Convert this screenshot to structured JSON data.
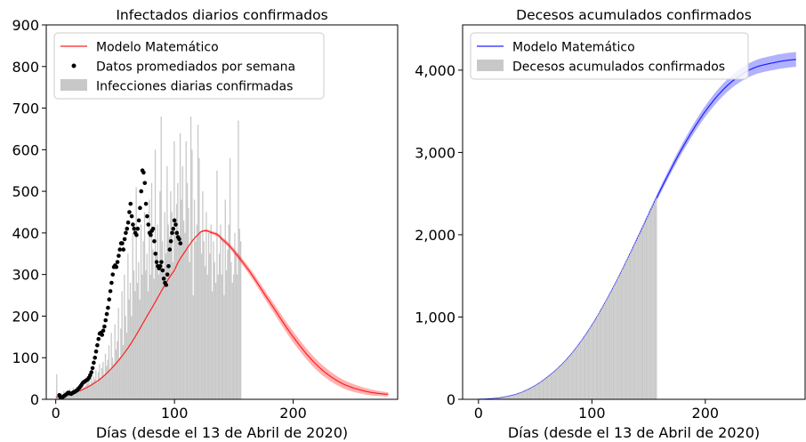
{
  "chart_data": [
    {
      "type": "bar",
      "title": "Infectados diarios confirmados",
      "xlabel": "Días (desde el 13 de Abril de 2020)",
      "ylabel": "",
      "xlim": [
        -8,
        288
      ],
      "ylim": [
        0,
        900
      ],
      "x_ticks": [
        0,
        100,
        200
      ],
      "y_ticks": [
        0,
        100,
        200,
        300,
        400,
        500,
        600,
        700,
        800,
        900
      ],
      "y_tick_format": "plain",
      "legend": {
        "position": "top-left",
        "entries": [
          {
            "label": "Modelo Matemático",
            "kind": "line",
            "color": "#ff2020"
          },
          {
            "label": "Datos promediados por semana",
            "kind": "dot",
            "color": "#000000"
          },
          {
            "label": "Infecciones diarias confirmadas",
            "kind": "bar",
            "color": "#c8c8c8"
          }
        ]
      },
      "series": [
        {
          "kind": "bars",
          "color": "#c8c8c8",
          "x_start": 1,
          "values": [
            60,
            5,
            8,
            12,
            15,
            9,
            20,
            14,
            18,
            22,
            10,
            25,
            16,
            12,
            28,
            20,
            15,
            30,
            22,
            18,
            35,
            25,
            40,
            28,
            32,
            45,
            38,
            50,
            35,
            60,
            42,
            55,
            48,
            70,
            40,
            65,
            85,
            50,
            75,
            90,
            60,
            110,
            80,
            95,
            130,
            70,
            160,
            100,
            85,
            180,
            120,
            140,
            220,
            100,
            170,
            260,
            130,
            300,
            200,
            160,
            350,
            240,
            280,
            200,
            400,
            310,
            260,
            510,
            280,
            330,
            240,
            420,
            300,
            380,
            450,
            310,
            350,
            260,
            480,
            300,
            520,
            360,
            290,
            600,
            350,
            420,
            300,
            500,
            680,
            380,
            310,
            450,
            350,
            560,
            420,
            390,
            500,
            450,
            330,
            620,
            400,
            470,
            520,
            380,
            640,
            480,
            560,
            430,
            400,
            620,
            520,
            460,
            330,
            680,
            600,
            250,
            480,
            380,
            420,
            330,
            580,
            400,
            350,
            500,
            380,
            320,
            450,
            300,
            400,
            350,
            420,
            260,
            380,
            330,
            280,
            550,
            300,
            350,
            420,
            300,
            380,
            250,
            480,
            310,
            360,
            420,
            580,
            330,
            280,
            300,
            400,
            350,
            300,
            670,
            410,
            380
          ],
          "cap_x": 120,
          "cap_value": 660
        },
        {
          "kind": "dots",
          "name": "Datos promediados por semana",
          "color": "#000000",
          "x_start": 3,
          "values": [
            10,
            5,
            4,
            6,
            8,
            10,
            12,
            15,
            16,
            14,
            13,
            15,
            17,
            18,
            20,
            22,
            25,
            28,
            32,
            36,
            40,
            42,
            44,
            46,
            48,
            52,
            58,
            65,
            75,
            88,
            100,
            115,
            130,
            145,
            158,
            160,
            155,
            165,
            175,
            190,
            205,
            220,
            240,
            260,
            280,
            300,
            318,
            322,
            318,
            330,
            345,
            360,
            375,
            375,
            360,
            385,
            400,
            410,
            425,
            450,
            470,
            440,
            420,
            410,
            400,
            395,
            410,
            430,
            460,
            500,
            550,
            545,
            520,
            470,
            440,
            420,
            400,
            395,
            405,
            410,
            380,
            350,
            330,
            320,
            315,
            320,
            330,
            310,
            290,
            280,
            275,
            300,
            320,
            360,
            380,
            400,
            410,
            430,
            420,
            400,
            390,
            385,
            375
          ]
        },
        {
          "kind": "model",
          "name": "Modelo Matemático",
          "color": "#ff2020",
          "x": [
            0,
            20,
            40,
            60,
            80,
            100,
            110,
            120,
            125,
            130,
            140,
            160,
            180,
            200,
            220,
            240,
            260,
            280
          ],
          "y": [
            5,
            20,
            55,
            120,
            215,
            310,
            360,
            396,
            405,
            402,
            385,
            320,
            235,
            150,
            82,
            40,
            20,
            12
          ]
        }
      ]
    },
    {
      "type": "bar",
      "title": "Decesos acumulados confirmados",
      "xlabel": "Días (desde el 13 de Abril de 2020)",
      "ylabel": "",
      "xlim": [
        -14,
        288
      ],
      "ylim": [
        0,
        4550
      ],
      "x_ticks": [
        0,
        100,
        200
      ],
      "y_ticks": [
        0,
        1000,
        2000,
        3000,
        4000
      ],
      "y_tick_format": "thousands",
      "legend": {
        "position": "top-left",
        "entries": [
          {
            "label": "Modelo Matemático",
            "kind": "line",
            "color": "#2020ff"
          },
          {
            "label": "Decesos acumulados confirmados",
            "kind": "bar",
            "color": "#c8c8c8"
          }
        ]
      },
      "series": [
        {
          "kind": "model",
          "name": "Modelo Matemático",
          "color": "#2020ff",
          "x": [
            0,
            20,
            40,
            60,
            80,
            100,
            120,
            140,
            160,
            180,
            200,
            220,
            240,
            260,
            280
          ],
          "y": [
            0,
            20,
            95,
            260,
            520,
            900,
            1390,
            1950,
            2530,
            3060,
            3500,
            3820,
            4010,
            4090,
            4130
          ]
        },
        {
          "kind": "cumbars",
          "name": "Decesos acumulados confirmados",
          "color": "#c8c8c8",
          "x_start": 1,
          "x_end": 157
        }
      ]
    }
  ]
}
